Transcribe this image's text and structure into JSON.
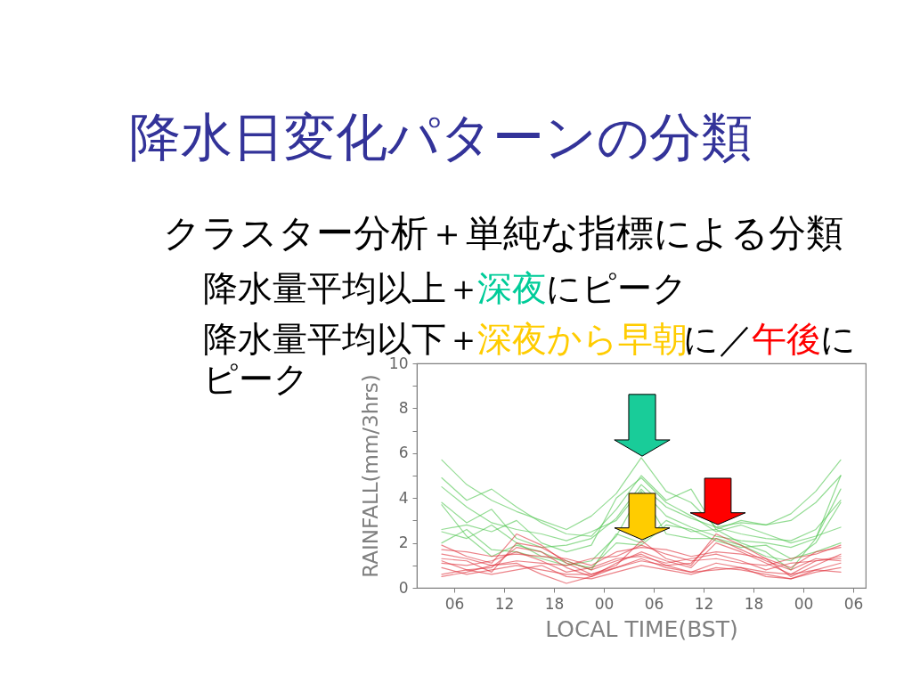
{
  "chart_data": {
    "type": "line",
    "title": "降水日変化パターンの分類",
    "subtitle": "クラスター分析＋単純な指標による分類",
    "annotations": [
      "降水量平均以上＋",
      "深夜",
      "にピーク",
      "降水量平均以下＋",
      "深夜から早朝",
      "に／",
      "午後",
      "に",
      "ピーク"
    ],
    "xlabel": "LOCAL TIME(BST)",
    "ylabel": "RAINFALL(mm/3hrs)",
    "x": [
      4.5,
      7.5,
      10.5,
      13.5,
      16.5,
      19.5,
      22.5,
      25.5,
      28.5,
      31.5,
      34.5,
      37.5,
      40.5,
      43.5,
      46.5,
      49.5,
      52.5
    ],
    "xlim": [
      1.5,
      55.5
    ],
    "xticks": [
      {
        "value": 6,
        "label": "06"
      },
      {
        "value": 12,
        "label": "12"
      },
      {
        "value": 18,
        "label": "18"
      },
      {
        "value": 24,
        "label": "00"
      },
      {
        "value": 30,
        "label": "06"
      },
      {
        "value": 36,
        "label": "12"
      },
      {
        "value": 42,
        "label": "18"
      },
      {
        "value": 48,
        "label": "00"
      },
      {
        "value": 54,
        "label": "06"
      }
    ],
    "ylim": [
      0,
      10
    ],
    "yticks": [
      0,
      {
        "value": 1,
        "label": null
      },
      2,
      {
        "value": 3,
        "label": null
      },
      4,
      {
        "value": 5,
        "label": null
      },
      6,
      {
        "value": 7,
        "label": null
      },
      8,
      {
        "value": 9,
        "label": null
      },
      10
    ],
    "series": [
      {
        "color": "#4cc44c",
        "values": [
          5.7,
          4.6,
          3.9,
          3.4,
          3.0,
          2.6,
          3.2,
          4.2,
          5.8,
          4.3,
          3.8,
          2.7,
          2.9,
          2.8,
          3.3,
          4.3,
          5.7
        ]
      },
      {
        "color": "#4cc44c",
        "values": [
          4.9,
          3.9,
          4.4,
          3.6,
          2.9,
          2.4,
          2.3,
          3.5,
          5.0,
          3.9,
          4.4,
          2.6,
          3.0,
          2.8,
          3.0,
          3.8,
          5.0
        ]
      },
      {
        "color": "#4cc44c",
        "values": [
          3.8,
          2.9,
          3.5,
          2.2,
          1.8,
          1.9,
          2.2,
          3.1,
          4.6,
          3.6,
          3.1,
          2.7,
          2.4,
          2.2,
          2.1,
          2.6,
          3.9
        ]
      },
      {
        "color": "#4cc44c",
        "values": [
          2.6,
          2.8,
          2.5,
          3.0,
          2.0,
          1.6,
          1.9,
          4.0,
          4.9,
          3.8,
          3.2,
          2.5,
          2.8,
          2.4,
          2.0,
          2.3,
          2.7
        ]
      },
      {
        "color": "#4cc44c",
        "values": [
          4.5,
          3.6,
          2.9,
          2.6,
          2.4,
          2.1,
          2.5,
          3.0,
          4.4,
          3.2,
          2.7,
          2.3,
          2.1,
          2.0,
          1.8,
          2.2,
          4.4
        ]
      },
      {
        "color": "#4cc44c",
        "values": [
          2.5,
          2.2,
          2.8,
          2.0,
          1.4,
          1.2,
          0.8,
          2.4,
          2.0,
          3.0,
          2.5,
          2.6,
          2.0,
          1.6,
          0.8,
          2.2,
          5.0
        ]
      },
      {
        "color": "#4cc44c",
        "values": [
          3.7,
          2.3,
          1.4,
          1.9,
          1.6,
          1.1,
          0.9,
          2.0,
          1.9,
          2.8,
          2.6,
          2.1,
          1.8,
          1.9,
          1.3,
          1.6,
          2.0
        ]
      },
      {
        "color": "#4cc44c",
        "values": [
          2.0,
          2.6,
          1.7,
          1.6,
          1.3,
          1.0,
          1.2,
          2.3,
          4.3,
          2.4,
          2.2,
          2.2,
          1.9,
          1.4,
          1.2,
          2.0,
          3.8
        ]
      },
      {
        "color": "#e0303a",
        "values": [
          1.9,
          1.4,
          1.1,
          2.4,
          1.9,
          1.1,
          0.6,
          1.0,
          2.1,
          1.3,
          1.0,
          2.4,
          1.9,
          1.3,
          0.5,
          1.0,
          1.5
        ]
      },
      {
        "color": "#e0303a",
        "values": [
          1.2,
          0.8,
          0.9,
          1.8,
          1.6,
          0.9,
          0.5,
          1.1,
          1.6,
          1.2,
          0.9,
          2.0,
          1.6,
          1.1,
          0.6,
          1.2,
          1.4
        ]
      },
      {
        "color": "#e0303a",
        "values": [
          1.5,
          1.3,
          1.0,
          1.2,
          1.1,
          1.0,
          1.3,
          1.4,
          1.9,
          1.5,
          1.2,
          1.3,
          1.1,
          1.0,
          1.3,
          1.5,
          1.9
        ]
      },
      {
        "color": "#e0303a",
        "values": [
          0.9,
          0.6,
          0.8,
          1.0,
          0.8,
          0.6,
          0.6,
          0.9,
          1.3,
          0.9,
          0.7,
          0.8,
          0.9,
          0.7,
          0.6,
          0.8,
          1.1
        ]
      },
      {
        "color": "#e0303a",
        "values": [
          1.3,
          1.2,
          0.7,
          2.0,
          1.8,
          1.2,
          0.8,
          1.2,
          1.5,
          1.0,
          1.1,
          2.2,
          1.7,
          1.2,
          0.8,
          1.3,
          1.2
        ]
      },
      {
        "color": "#e0303a",
        "values": [
          0.6,
          0.8,
          0.6,
          0.8,
          1.0,
          0.5,
          0.4,
          0.7,
          1.0,
          0.8,
          0.6,
          0.9,
          0.8,
          0.6,
          0.4,
          0.7,
          0.9
        ]
      },
      {
        "color": "#e0303a",
        "values": [
          1.7,
          1.6,
          1.4,
          1.5,
          1.4,
          1.3,
          1.0,
          1.6,
          1.8,
          1.7,
          1.4,
          1.6,
          1.5,
          1.3,
          0.9,
          1.6,
          1.8
        ]
      },
      {
        "color": "#e0303a",
        "values": [
          1.1,
          1.0,
          1.2,
          1.6,
          1.2,
          0.7,
          0.9,
          1.3,
          1.4,
          1.1,
          1.3,
          1.5,
          1.2,
          0.8,
          1.1,
          1.2,
          1.3
        ]
      },
      {
        "color": "#e0303a",
        "values": [
          0.5,
          0.7,
          1.0,
          1.1,
          0.6,
          0.2,
          0.5,
          0.9,
          1.2,
          1.0,
          0.7,
          1.1,
          0.9,
          0.5,
          0.4,
          0.8,
          0.7
        ]
      }
    ]
  }
}
